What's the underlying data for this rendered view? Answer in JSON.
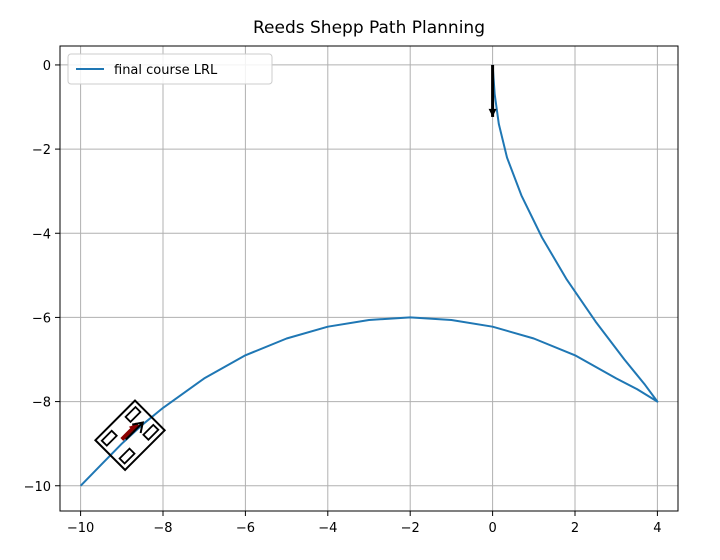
{
  "chart_data": {
    "type": "line",
    "title": "Reeds Shepp Path Planning",
    "xlabel": "",
    "ylabel": "",
    "xlim": [
      -10.5,
      4.5
    ],
    "ylim": [
      -10.6,
      0.45
    ],
    "xticks": [
      -10,
      -8,
      -6,
      -4,
      -2,
      0,
      2,
      4
    ],
    "yticks": [
      0,
      -2,
      -4,
      -6,
      -8,
      -10
    ],
    "xtick_labels": [
      "−10",
      "−8",
      "−6",
      "−4",
      "−2",
      "0",
      "2",
      "4"
    ],
    "ytick_labels": [
      "0",
      "−2",
      "−4",
      "−6",
      "−8",
      "−10"
    ],
    "grid": true,
    "legend_position": "top-left",
    "series": [
      {
        "name": "final course LRL",
        "color": "#1f77b4",
        "x": [
          -10,
          -9.5,
          -9.0,
          -8.5,
          -8.0,
          -7.0,
          -6.0,
          -5.0,
          -4.0,
          -3.0,
          -2.0,
          -1.0,
          0.0,
          1.0,
          2.0,
          3.0,
          3.5,
          4.0,
          3.7,
          3.2,
          2.5,
          1.8,
          1.2,
          0.7,
          0.35,
          0.15,
          0.05,
          0.0
        ],
        "y": [
          -10,
          -9.5,
          -9.0,
          -8.55,
          -8.15,
          -7.45,
          -6.9,
          -6.5,
          -6.22,
          -6.06,
          -6.0,
          -6.06,
          -6.22,
          -6.5,
          -6.9,
          -7.45,
          -7.7,
          -8.0,
          -7.6,
          -7.0,
          -6.1,
          -5.1,
          -4.1,
          -3.1,
          -2.2,
          -1.4,
          -0.7,
          0.0
        ]
      }
    ],
    "start_pose": {
      "x": 0.0,
      "y": 0.0,
      "heading_deg": -90,
      "color": "#000000"
    },
    "goal_pose": {
      "x": -9.0,
      "y": -8.9,
      "heading_deg": 45,
      "color": "#8b0000"
    },
    "vehicle": {
      "x": -8.8,
      "y": -8.8,
      "heading_deg": 45,
      "color": "#000000"
    }
  }
}
